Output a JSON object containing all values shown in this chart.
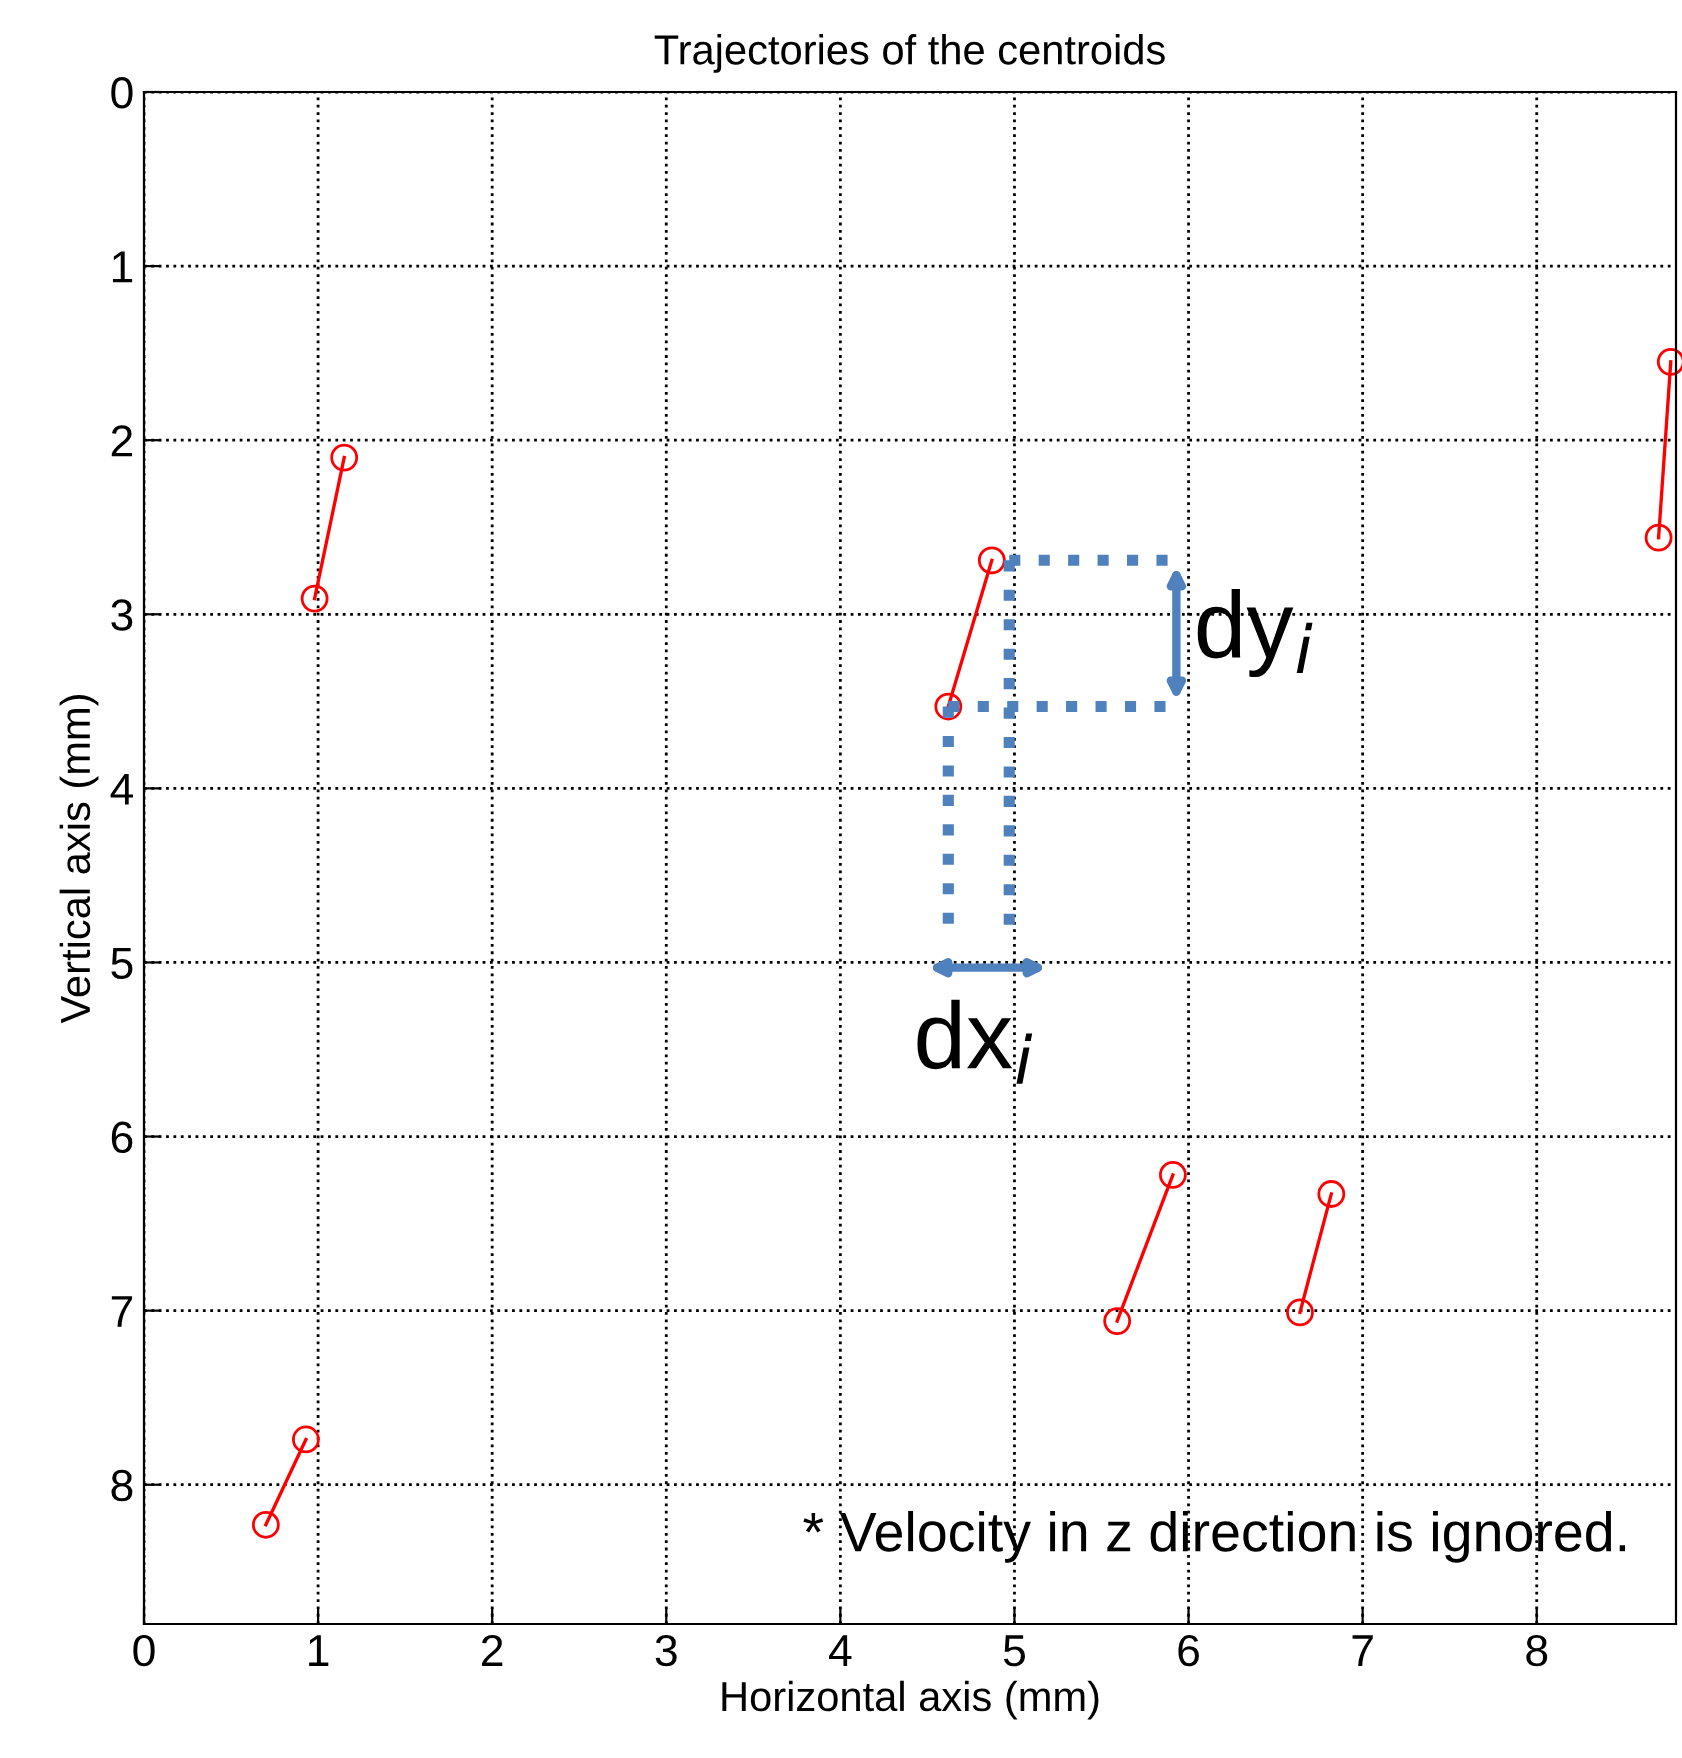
{
  "chart_data": {
    "type": "line",
    "title": "Trajectories of the centroids",
    "xlabel": "Horizontal axis (mm)",
    "ylabel": "Vertical axis (mm)",
    "series": [
      {
        "color": "#ff0000",
        "x": [
          0.98,
          1.15
        ],
        "values": [
          2.91,
          2.1
        ]
      },
      {
        "color": "#ff0000",
        "x": [
          4.62,
          4.87
        ],
        "values": [
          3.53,
          2.69
        ]
      },
      {
        "color": "#ff0000",
        "x": [
          8.7,
          8.77
        ],
        "values": [
          2.56,
          1.55
        ]
      },
      {
        "color": "#ff0000",
        "x": [
          5.59,
          5.91
        ],
        "values": [
          7.06,
          6.22
        ]
      },
      {
        "color": "#ff0000",
        "x": [
          6.64,
          6.82
        ],
        "values": [
          7.01,
          6.33
        ]
      },
      {
        "color": "#ff0000",
        "x": [
          0.7,
          0.93
        ],
        "values": [
          8.23,
          7.74
        ]
      }
    ],
    "marker": "circle",
    "line_style": "solid",
    "grid": true,
    "xlim": [
      0,
      8.8
    ],
    "xticks": [
      0,
      1,
      2,
      3,
      4,
      5,
      6,
      7,
      8
    ],
    "ylim": [
      8.8,
      0
    ],
    "yticks": [
      0,
      1,
      2,
      3,
      4,
      5,
      6,
      7,
      8
    ],
    "annotations": [
      {
        "text": "dy$_{i}$",
        "x": 4.87,
        "y": 2.69
      },
      {
        "text": "dx$_{i}$",
        "x": 4.62,
        "y": 3.53
      },
      "* Velocity in z direction is ignored."
    ]
  }
}
